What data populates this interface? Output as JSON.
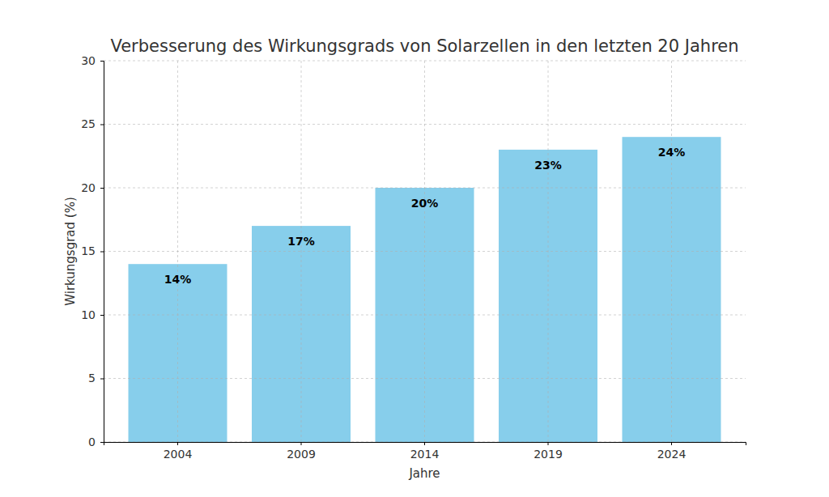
{
  "chart_data": {
    "type": "bar",
    "title": "Verbesserung des Wirkungsgrads von Solarzellen in den letzten 20 Jahren",
    "x_label": "Jahre",
    "y_label": "Wirkungsgrad (%)",
    "categories": [
      "2004",
      "2009",
      "2014",
      "2019",
      "2024"
    ],
    "values": [
      14,
      17,
      20,
      23,
      24
    ],
    "value_labels": [
      "14%",
      "17%",
      "20%",
      "23%",
      "24%"
    ],
    "color": "#87ceeb",
    "ylim": [
      0,
      30
    ],
    "yticks": [
      0,
      5,
      10,
      15,
      20,
      25,
      30
    ],
    "grid": true,
    "data_labels": true
  }
}
